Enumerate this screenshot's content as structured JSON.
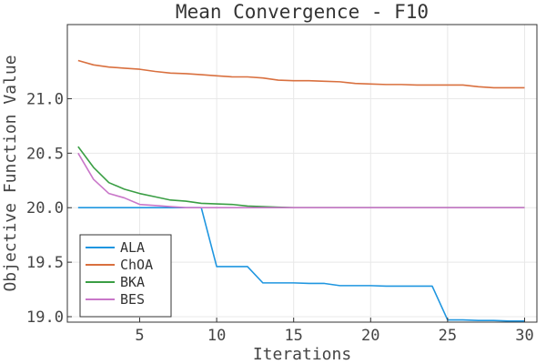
{
  "chart_data": {
    "type": "line",
    "title": "Mean Convergence - F10",
    "xlabel": "Iterations",
    "ylabel": "Objective Function Value",
    "xlim": [
      0.3,
      30.8
    ],
    "ylim": [
      18.95,
      21.68
    ],
    "xticks": [
      5,
      10,
      15,
      20,
      25,
      30
    ],
    "yticks": [
      19.0,
      19.5,
      20.0,
      20.5,
      21.0
    ],
    "ytick_labels": [
      "19.0",
      "19.5",
      "20.0",
      "20.5",
      "21.0"
    ],
    "grid": true,
    "legend_position": "bottom-left",
    "x": [
      1,
      2,
      3,
      4,
      5,
      6,
      7,
      8,
      9,
      10,
      11,
      12,
      13,
      14,
      15,
      16,
      17,
      18,
      19,
      20,
      21,
      22,
      23,
      24,
      25,
      26,
      27,
      28,
      29,
      30
    ],
    "series": [
      {
        "name": "ALA",
        "color": "#1f96e0",
        "values": [
          20.0,
          20.0,
          20.0,
          20.0,
          20.0,
          20.0,
          20.0,
          20.0,
          20.0,
          19.46,
          19.46,
          19.46,
          19.31,
          19.31,
          19.31,
          19.305,
          19.305,
          19.285,
          19.285,
          19.285,
          19.28,
          19.28,
          19.28,
          19.28,
          18.97,
          18.97,
          18.965,
          18.965,
          18.96,
          18.96
        ]
      },
      {
        "name": "ChOA",
        "color": "#d9703f",
        "values": [
          21.35,
          21.31,
          21.29,
          21.28,
          21.27,
          21.25,
          21.235,
          21.23,
          21.22,
          21.21,
          21.2,
          21.2,
          21.19,
          21.17,
          21.165,
          21.165,
          21.16,
          21.155,
          21.14,
          21.135,
          21.13,
          21.13,
          21.125,
          21.125,
          21.125,
          21.125,
          21.11,
          21.1,
          21.1,
          21.1
        ]
      },
      {
        "name": "BKA",
        "color": "#3a9e44",
        "values": [
          20.56,
          20.37,
          20.23,
          20.17,
          20.13,
          20.1,
          20.07,
          20.06,
          20.04,
          20.035,
          20.03,
          20.015,
          20.01,
          20.005,
          20.0,
          20.0,
          20.0,
          20.0,
          20.0,
          20.0,
          20.0,
          20.0,
          20.0,
          20.0,
          20.0,
          20.0,
          20.0,
          20.0,
          20.0,
          20.0
        ]
      },
      {
        "name": "BES",
        "color": "#c977c9",
        "values": [
          20.5,
          20.26,
          20.13,
          20.09,
          20.03,
          20.02,
          20.01,
          20.0,
          20.0,
          20.0,
          20.0,
          20.0,
          20.0,
          20.0,
          20.0,
          20.0,
          20.0,
          20.0,
          20.0,
          20.0,
          20.0,
          20.0,
          20.0,
          20.0,
          20.0,
          20.0,
          20.0,
          20.0,
          20.0,
          20.0
        ]
      }
    ]
  }
}
